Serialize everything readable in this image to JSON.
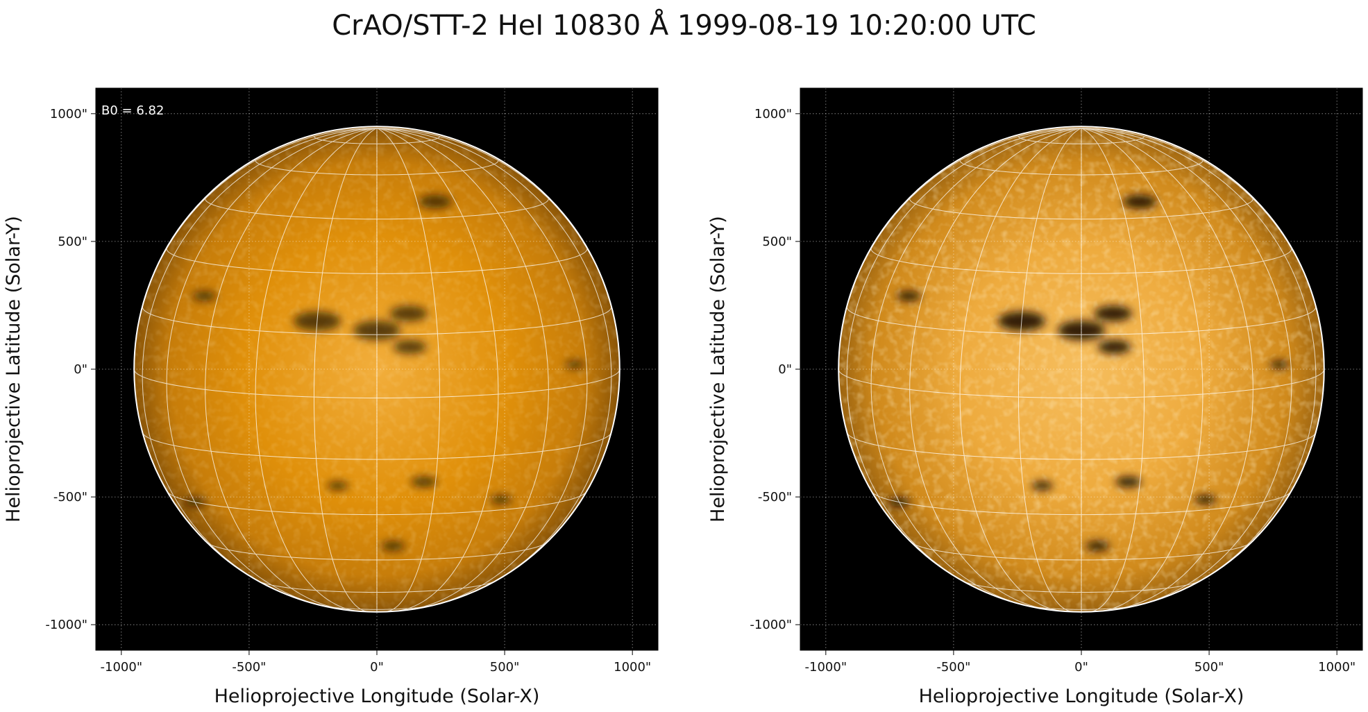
{
  "title": "CrAO/STT-2 HeI 10830 Å 1999-08-19 10:20:00 UTC",
  "panels": [
    {
      "annotation": "B0 = 6.82",
      "xlabel": "Helioprojective Longitude (Solar-X)",
      "ylabel": "Helioprojective Latitude (Solar-Y)",
      "enhanced": false
    },
    {
      "annotation": "",
      "xlabel": "Helioprojective Longitude (Solar-X)",
      "ylabel": "Helioprojective Latitude (Solar-Y)",
      "enhanced": true
    }
  ],
  "axes": {
    "xlim": [
      -1100,
      1100
    ],
    "ylim": [
      -1100,
      1100
    ],
    "x_ticks": [
      -1000,
      -500,
      0,
      500,
      1000
    ],
    "y_ticks": [
      -1000,
      -500,
      0,
      500,
      1000
    ],
    "x_tick_labels": [
      "-1000\"",
      "-500\"",
      "0\"",
      "500\"",
      "1000\""
    ],
    "y_tick_labels": [
      "-1000\"",
      "-500\"",
      "0\"",
      "500\"",
      "1000\""
    ],
    "grid": true,
    "solar_radius_arcsec": 950,
    "b0_deg": 6.82,
    "graticule_spacing_deg": 15
  },
  "colors": {
    "background": "#000000",
    "disk_mid": "#e0900a",
    "disk_bright": "#f6be5e",
    "disk_limb": "#8a5508",
    "grid": "#ffffff",
    "limb_circle": "#ffffff"
  },
  "features": [
    {
      "lon": -15,
      "lat": 18,
      "size": 1.0
    },
    {
      "lon": 0,
      "lat": 16,
      "size": 1.0
    },
    {
      "lon": 8,
      "lat": 20,
      "size": 0.8
    },
    {
      "lon": 8,
      "lat": 12,
      "size": 0.7
    },
    {
      "lon": 22,
      "lat": 50,
      "size": 0.7
    },
    {
      "lon": -50,
      "lat": 22,
      "size": 0.5
    },
    {
      "lon": 12,
      "lat": -21,
      "size": 0.55
    },
    {
      "lon": -10,
      "lat": -22,
      "size": 0.45
    },
    {
      "lon": 35,
      "lat": -27,
      "size": 0.45
    },
    {
      "lon": 55,
      "lat": 5,
      "size": 0.4
    },
    {
      "lon": -60,
      "lat": -30,
      "size": 0.45
    },
    {
      "lon": 5,
      "lat": -40,
      "size": 0.5
    }
  ]
}
